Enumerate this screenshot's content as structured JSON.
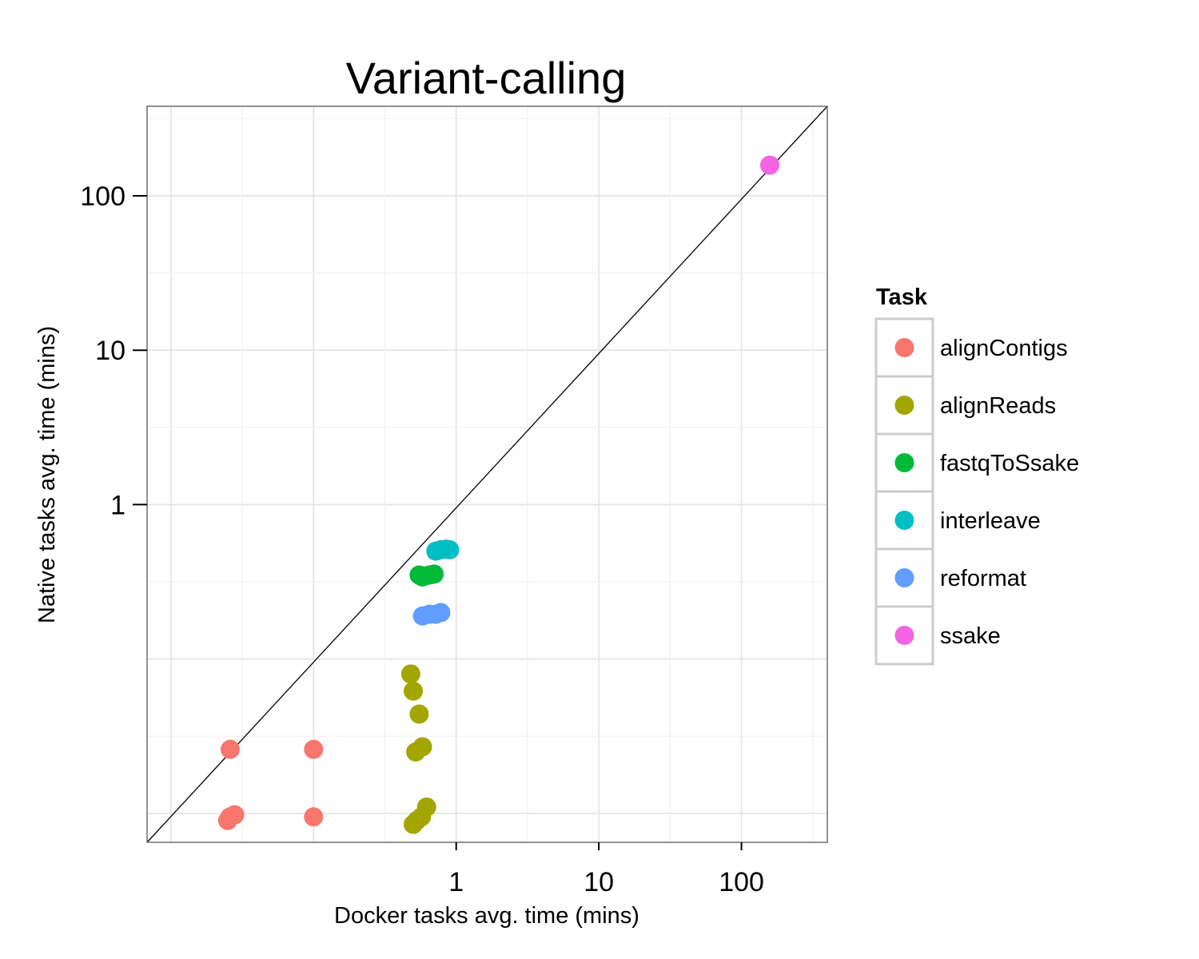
{
  "chart_data": {
    "type": "scatter",
    "title": "Variant-calling",
    "xlabel": "Docker tasks avg. time (mins)",
    "ylabel": "Native tasks avg. time (mins)",
    "x_scale": "log10",
    "y_scale": "log10",
    "xlim": [
      0.0068,
      400
    ],
    "ylim": [
      0.0065,
      380
    ],
    "x_ticks": [
      {
        "value": 1,
        "label": "1"
      },
      {
        "value": 10,
        "label": "10"
      },
      {
        "value": 100,
        "label": "100"
      }
    ],
    "y_ticks": [
      {
        "value": 1,
        "label": "1"
      },
      {
        "value": 10,
        "label": "10"
      },
      {
        "value": 100,
        "label": "100"
      }
    ],
    "grid": true,
    "reference_line": "y = x",
    "legend": {
      "title": "Task",
      "placement": "right"
    },
    "series": [
      {
        "name": "alignContigs",
        "color": "#F8766D",
        "points": [
          [
            0.026,
            0.026
          ],
          [
            0.1,
            0.026
          ],
          [
            0.026,
            0.0095
          ],
          [
            0.025,
            0.009
          ],
          [
            0.028,
            0.0098
          ],
          [
            0.1,
            0.0095
          ]
        ]
      },
      {
        "name": "alignReads",
        "color": "#A3A500",
        "points": [
          [
            0.48,
            0.08
          ],
          [
            0.5,
            0.062
          ],
          [
            0.55,
            0.044
          ],
          [
            0.58,
            0.027
          ],
          [
            0.52,
            0.025
          ],
          [
            0.62,
            0.011
          ],
          [
            0.57,
            0.0095
          ],
          [
            0.53,
            0.009
          ],
          [
            0.5,
            0.0085
          ]
        ]
      },
      {
        "name": "fastqToSsake",
        "color": "#00BA38",
        "points": [
          [
            0.55,
            0.35
          ],
          [
            0.58,
            0.34
          ],
          [
            0.6,
            0.345
          ],
          [
            0.65,
            0.35
          ],
          [
            0.7,
            0.355
          ]
        ]
      },
      {
        "name": "interleave",
        "color": "#00BFC4",
        "points": [
          [
            0.72,
            0.5
          ],
          [
            0.78,
            0.51
          ],
          [
            0.85,
            0.515
          ],
          [
            0.9,
            0.51
          ]
        ]
      },
      {
        "name": "reformat",
        "color": "#619CFF",
        "points": [
          [
            0.58,
            0.19
          ],
          [
            0.65,
            0.195
          ],
          [
            0.72,
            0.195
          ],
          [
            0.78,
            0.2
          ]
        ]
      },
      {
        "name": "ssake",
        "color": "#F564E3",
        "points": [
          [
            158,
            158
          ]
        ]
      }
    ]
  }
}
